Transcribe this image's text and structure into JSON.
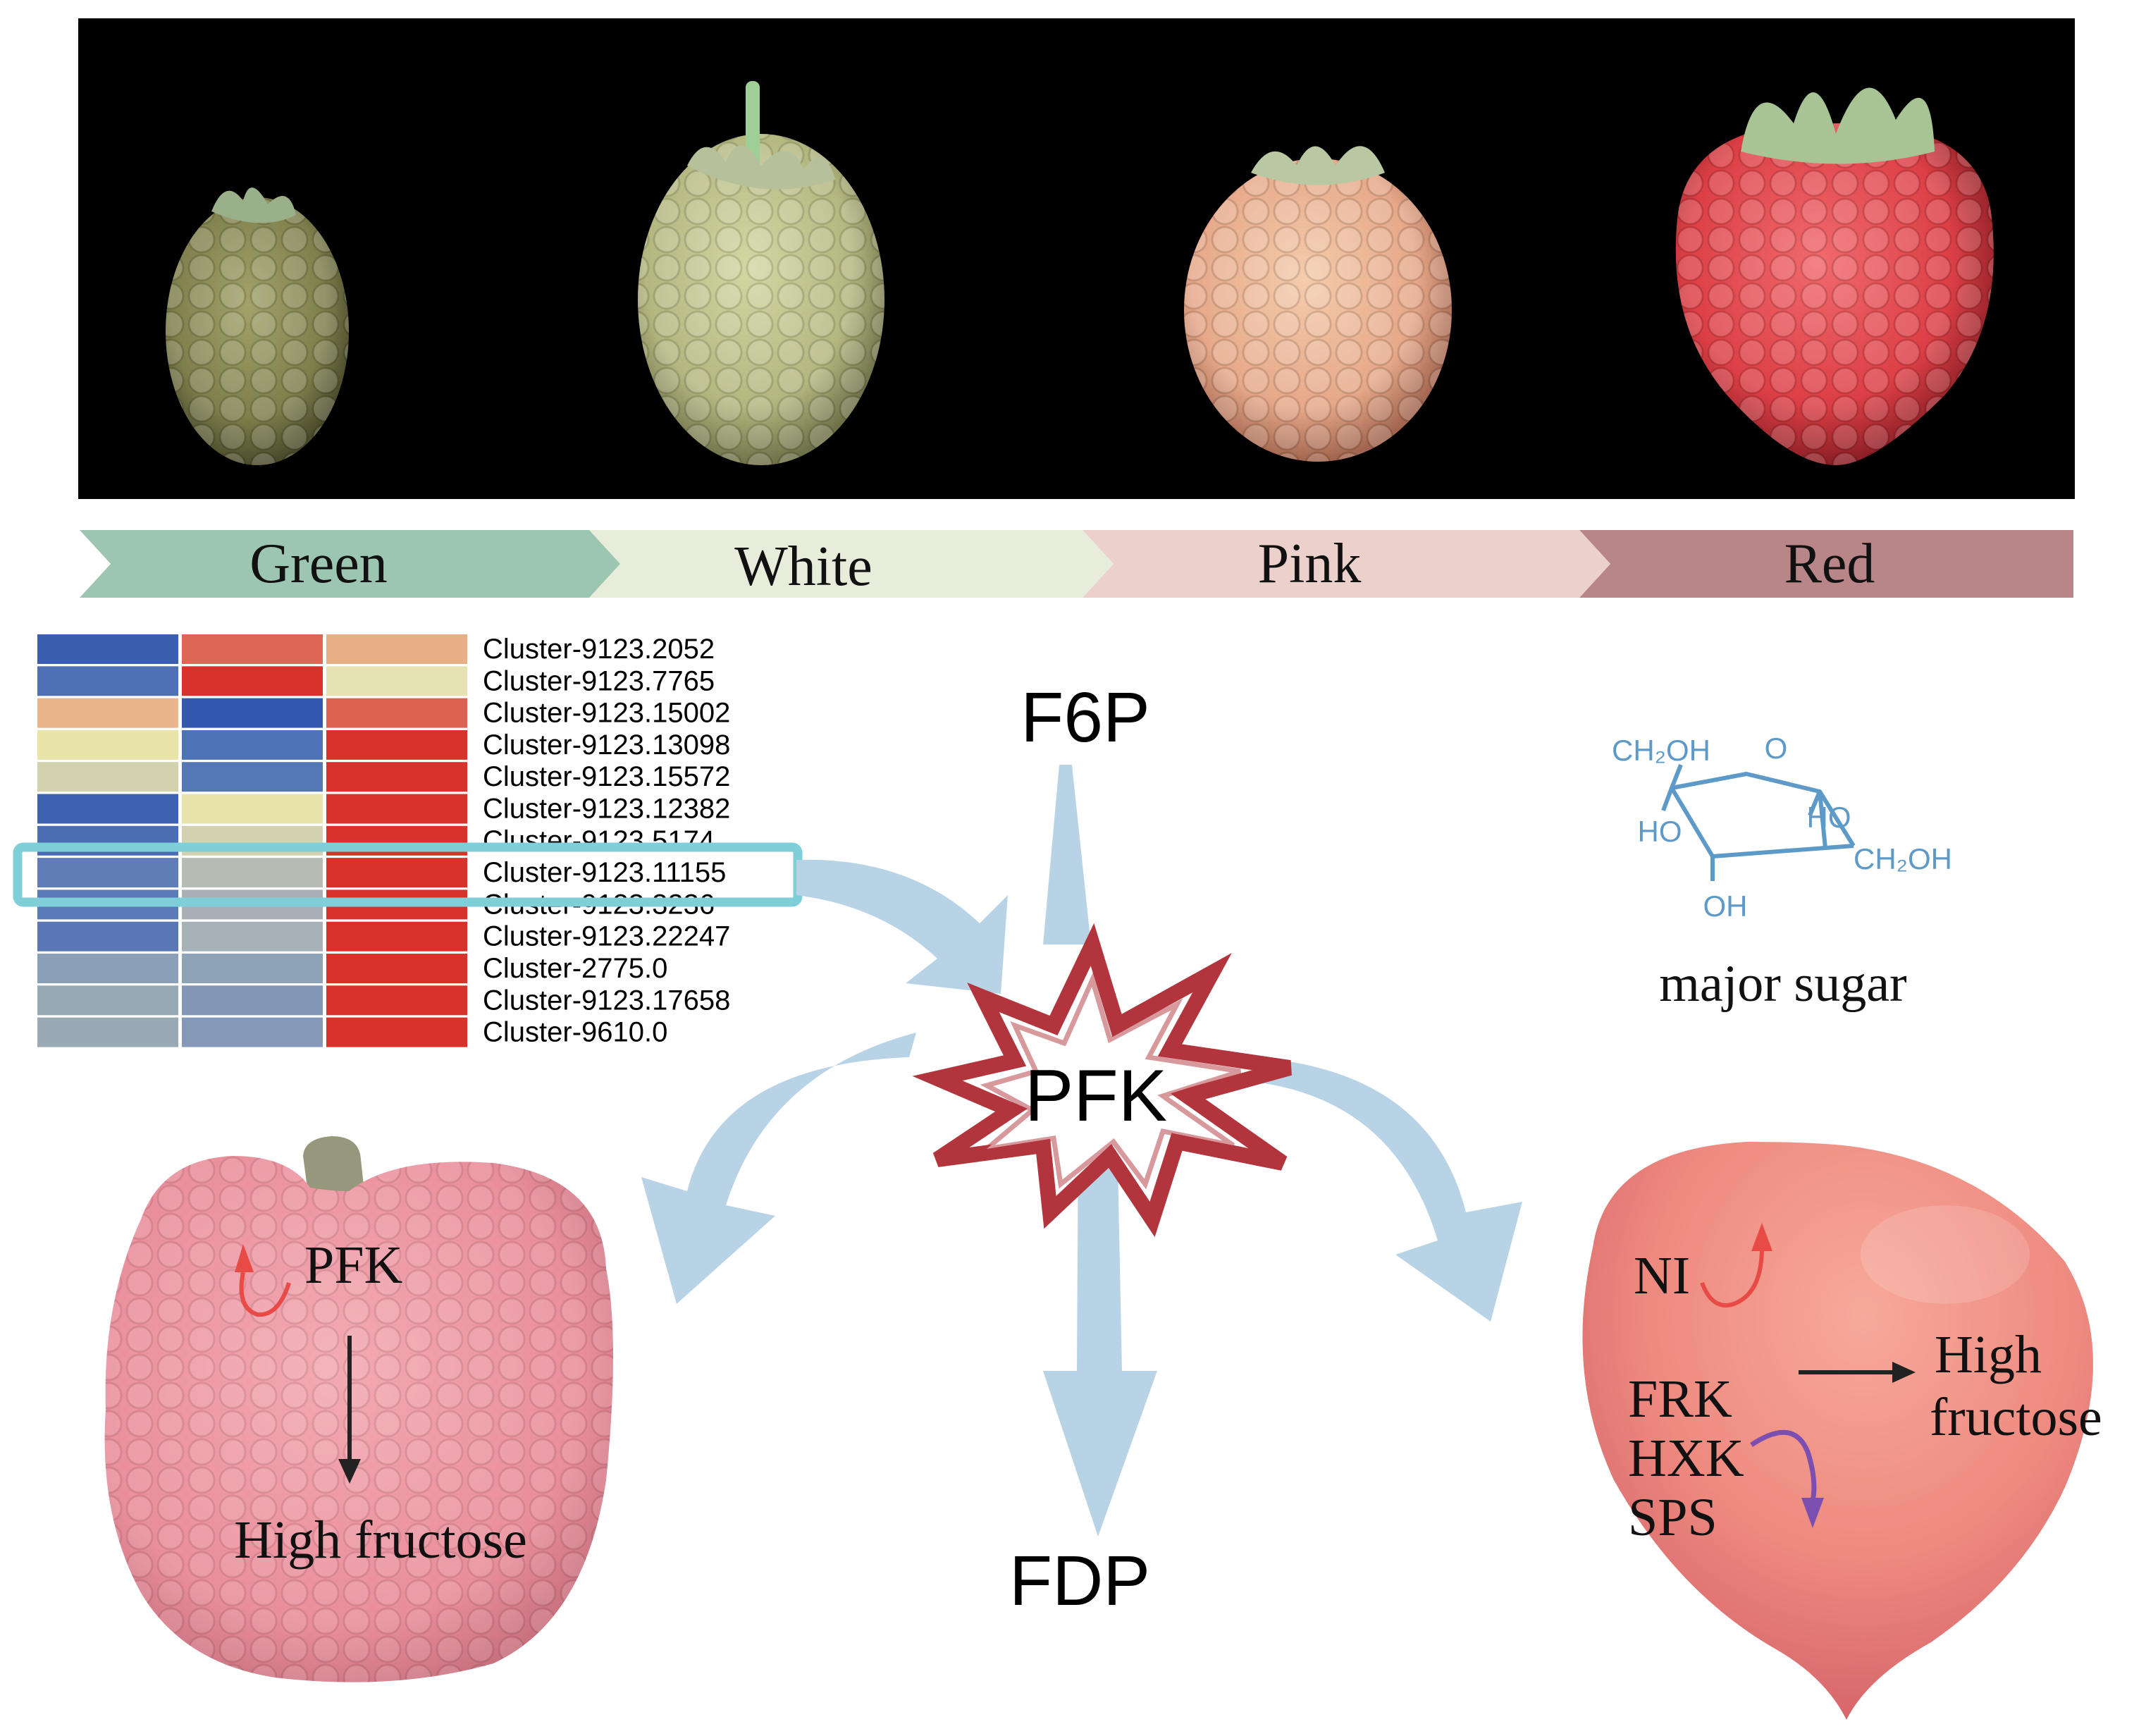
{
  "stages": [
    {
      "label": "Green",
      "color": "#9dc6b2"
    },
    {
      "label": "White",
      "color": "#e8ecdb"
    },
    {
      "label": "Pink",
      "color": "#ecd0cc"
    },
    {
      "label": "Red",
      "color": "#b88588"
    }
  ],
  "heatmap": {
    "rows": [
      {
        "label": "Cluster-9123.2052",
        "colors": [
          "#3a5fae",
          "#de6656",
          "#e8ae85"
        ]
      },
      {
        "label": "Cluster-9123.7765",
        "colors": [
          "#4d71b4",
          "#d8322b",
          "#e6e2b3"
        ]
      },
      {
        "label": "Cluster-9123.15002",
        "colors": [
          "#e8b58c",
          "#3258ae",
          "#de6252"
        ]
      },
      {
        "label": "Cluster-9123.13098",
        "colors": [
          "#e9e4aa",
          "#4d72b6",
          "#d8322b"
        ]
      },
      {
        "label": "Cluster-9123.15572",
        "colors": [
          "#d2d2ae",
          "#5677b6",
          "#d8322b"
        ]
      },
      {
        "label": "Cluster-9123.12382",
        "colors": [
          "#3d62b0",
          "#e8e4ac",
          "#d8322b"
        ]
      },
      {
        "label": "Cluster-9123.5174",
        "colors": [
          "#4a6db4",
          "#d2d2b0",
          "#d8322b"
        ]
      },
      {
        "label": "Cluster-9123.11155",
        "colors": [
          "#5f7eb8",
          "#b6bcb4",
          "#d8322b"
        ]
      },
      {
        "label": "Cluster-9123.3236",
        "colors": [
          "#5a7ab8",
          "#a8b0b6",
          "#d8322b"
        ]
      },
      {
        "label": "Cluster-9123.22247",
        "colors": [
          "#5877b4",
          "#a7b2b8",
          "#d8322b"
        ]
      },
      {
        "label": "Cluster-2775.0",
        "colors": [
          "#8a9fb8",
          "#8ea2b8",
          "#d8322b"
        ]
      },
      {
        "label": "Cluster-9123.17658",
        "colors": [
          "#98aab6",
          "#8097b8",
          "#d8322b"
        ]
      },
      {
        "label": "Cluster-9610.0",
        "colors": [
          "#9aaab4",
          "#8499b8",
          "#d8322b"
        ]
      }
    ],
    "highlight_label": "Cluster-9123.11155",
    "highlight_color": "#7ecfd8"
  },
  "pathway": {
    "substrate": "F6P",
    "enzyme": "PFK",
    "product": "FDP",
    "arrow_color": "#b9d3e6",
    "star_color": "#b2343c"
  },
  "molecule": {
    "ring_o": "O",
    "ch2oh_left": "CH₂OH",
    "ch2oh_right": "CH₂OH",
    "ho_left": "HO",
    "ho_right": "HO",
    "oh_bottom": "OH",
    "caption": "major sugar",
    "color": "#5e9ac8"
  },
  "left_fruit": {
    "enzyme": "PFK",
    "result": "High fructose",
    "up_arrow_color": "#e84a46"
  },
  "right_fruit": {
    "ni": "NI",
    "frk": "FRK",
    "hxk": "HXK",
    "sps": "SPS",
    "result_line1": "High",
    "result_line2": "fructose",
    "up_arrow_color": "#e84a46",
    "down_arrow_color": "#7a4fb0"
  }
}
